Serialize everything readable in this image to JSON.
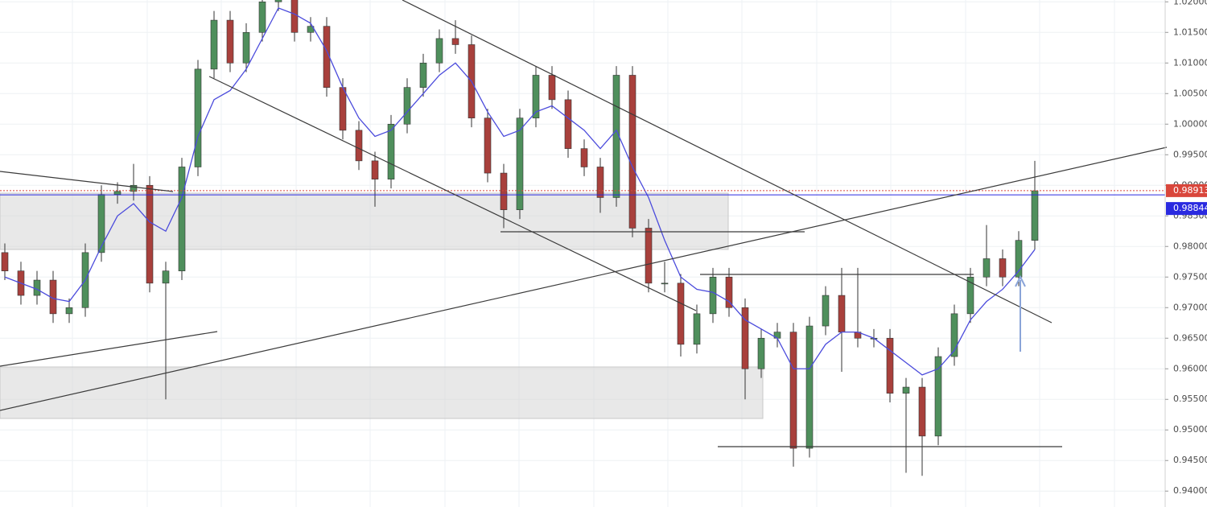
{
  "chart_data": {
    "type": "candlestick",
    "ylim": [
      0.9374,
      1.0203
    ],
    "yticks": [
      {
        "value": 0.94,
        "label": "0.94000"
      },
      {
        "value": 0.945,
        "label": "0.94500"
      },
      {
        "value": 0.95,
        "label": "0.95000"
      },
      {
        "value": 0.955,
        "label": "0.95500"
      },
      {
        "value": 0.96,
        "label": "0.96000"
      },
      {
        "value": 0.965,
        "label": "0.96500"
      },
      {
        "value": 0.97,
        "label": "0.97000"
      },
      {
        "value": 0.975,
        "label": "0.97500"
      },
      {
        "value": 0.98,
        "label": "0.98000"
      },
      {
        "value": 0.985,
        "label": "0.98500"
      },
      {
        "value": 0.99,
        "label": "0.99000"
      },
      {
        "value": 0.995,
        "label": "0.99500"
      },
      {
        "value": 1.0,
        "label": "1.00000"
      },
      {
        "value": 1.005,
        "label": "1.00500"
      },
      {
        "value": 1.01,
        "label": "1.01000"
      },
      {
        "value": 1.015,
        "label": "1.01500"
      },
      {
        "value": 1.02,
        "label": "1.02000"
      }
    ],
    "grid": true,
    "up_color": "#4f8f5c",
    "down_color": "#a8403c",
    "wick_color": "#333333",
    "ma_color": "#4b4bdc",
    "open": [
      0.979,
      0.976,
      0.972,
      0.9745,
      0.969,
      0.97,
      0.979,
      0.9885,
      0.989,
      0.99,
      0.974,
      0.976,
      0.993,
      1.009,
      1.017,
      1.01,
      1.015,
      1.02,
      1.021,
      1.015,
      1.016,
      1.006,
      0.999,
      0.994,
      0.991,
      1.0,
      1.006,
      1.01,
      1.014,
      1.013,
      1.001,
      0.992,
      0.986,
      1.001,
      1.008,
      1.004,
      0.996,
      0.993,
      0.988,
      1.008,
      0.983,
      0.974,
      0.974,
      0.964,
      0.969,
      0.975,
      0.97,
      0.96,
      0.965,
      0.966,
      0.947,
      0.967,
      0.972,
      0.966,
      0.965,
      0.965,
      0.956,
      0.957,
      0.949,
      0.962,
      0.969,
      0.975,
      0.978,
      0.975,
      0.981
    ],
    "high": [
      0.9805,
      0.9775,
      0.976,
      0.976,
      0.9715,
      0.9805,
      0.99,
      0.9905,
      0.9935,
      0.9915,
      0.9775,
      0.9945,
      1.0105,
      1.0185,
      1.0185,
      1.0165,
      1.0215,
      1.0225,
      1.0225,
      1.0175,
      1.0175,
      1.0075,
      1.0005,
      0.9955,
      1.0015,
      1.0075,
      1.0115,
      1.0155,
      1.017,
      1.0145,
      1.0025,
      0.9935,
      1.0025,
      1.0095,
      1.0095,
      1.0055,
      0.9975,
      0.9945,
      1.0095,
      1.0095,
      0.9845,
      0.9775,
      0.9755,
      0.9705,
      0.9765,
      0.9765,
      0.9715,
      0.9665,
      0.9675,
      0.9675,
      0.9685,
      0.9735,
      0.9765,
      0.9765,
      0.9665,
      0.9665,
      0.9585,
      0.9585,
      0.9635,
      0.9705,
      0.9765,
      0.9835,
      0.9795,
      0.9825,
      0.994
    ],
    "low": [
      0.9745,
      0.9705,
      0.9705,
      0.9675,
      0.9675,
      0.9685,
      0.9775,
      0.987,
      0.9875,
      0.9725,
      0.955,
      0.9745,
      0.9915,
      1.0075,
      1.0085,
      1.0085,
      1.0135,
      1.0185,
      1.0135,
      1.0135,
      1.0045,
      0.9975,
      0.9925,
      0.9865,
      0.9895,
      0.9985,
      1.0045,
      1.0085,
      1.0115,
      0.9995,
      0.9905,
      0.983,
      0.9845,
      0.9995,
      1.0025,
      0.9945,
      0.9915,
      0.9855,
      0.9865,
      0.9815,
      0.9725,
      0.9725,
      0.962,
      0.9625,
      0.9675,
      0.9685,
      0.955,
      0.9585,
      0.9635,
      0.944,
      0.9455,
      0.9655,
      0.9595,
      0.9635,
      0.9635,
      0.9545,
      0.943,
      0.9425,
      0.9475,
      0.9605,
      0.9675,
      0.9735,
      0.9735,
      0.9735,
      0.9795
    ],
    "close": [
      0.976,
      0.972,
      0.9745,
      0.969,
      0.97,
      0.979,
      0.9885,
      0.989,
      0.99,
      0.974,
      0.976,
      0.993,
      1.009,
      1.017,
      1.01,
      1.015,
      1.02,
      1.021,
      1.015,
      1.016,
      1.006,
      0.999,
      0.994,
      0.991,
      1.0,
      1.006,
      1.01,
      1.014,
      1.013,
      1.001,
      0.992,
      0.986,
      1.001,
      1.008,
      1.004,
      0.996,
      0.993,
      0.988,
      1.008,
      0.983,
      0.974,
      0.974,
      0.964,
      0.969,
      0.975,
      0.97,
      0.96,
      0.965,
      0.966,
      0.947,
      0.967,
      0.972,
      0.966,
      0.965,
      0.965,
      0.956,
      0.957,
      0.949,
      0.962,
      0.969,
      0.975,
      0.978,
      0.975,
      0.981,
      0.9891
    ],
    "ma": [
      0.975,
      0.974,
      0.973,
      0.9715,
      0.971,
      0.9745,
      0.98,
      0.985,
      0.987,
      0.984,
      0.9825,
      0.988,
      0.998,
      1.004,
      1.0055,
      1.009,
      1.014,
      1.019,
      1.018,
      1.0165,
      1.012,
      1.006,
      1.001,
      0.998,
      0.999,
      1.002,
      1.005,
      1.008,
      1.01,
      1.007,
      1.002,
      0.998,
      0.999,
      1.002,
      1.003,
      1.001,
      0.999,
      0.996,
      0.999,
      0.993,
      0.988,
      0.981,
      0.975,
      0.973,
      0.9725,
      0.971,
      0.968,
      0.9665,
      0.965,
      0.96,
      0.96,
      0.964,
      0.966,
      0.966,
      0.965,
      0.963,
      0.961,
      0.959,
      0.96,
      0.963,
      0.968,
      0.971,
      0.973,
      0.976,
      0.9795
    ],
    "price_lines": [
      {
        "value": 0.98913,
        "color": "#d9463b"
      },
      {
        "value": 0.98844,
        "color": "#2a2ae0"
      }
    ]
  }
}
